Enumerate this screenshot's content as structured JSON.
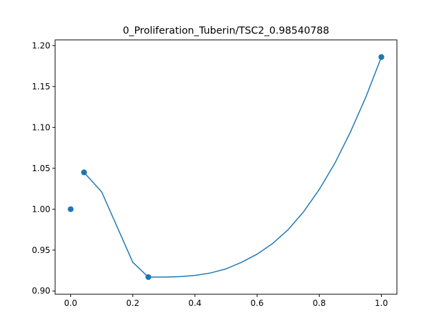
{
  "chart_data": {
    "type": "line",
    "title": "0_Proliferation_Tuberin/TSC2_0.98540788",
    "xlabel": "",
    "ylabel": "",
    "xlim": [
      -0.05,
      1.05
    ],
    "ylim": [
      0.896,
      1.207
    ],
    "grid": false,
    "color": "#1f77b4",
    "x_ticks": [
      {
        "value": 0.0,
        "label": "0.0"
      },
      {
        "value": 0.2,
        "label": "0.2"
      },
      {
        "value": 0.4,
        "label": "0.4"
      },
      {
        "value": 0.6,
        "label": "0.6"
      },
      {
        "value": 0.8,
        "label": "0.8"
      },
      {
        "value": 1.0,
        "label": "1.0"
      }
    ],
    "y_ticks": [
      {
        "value": 0.9,
        "label": "0.90"
      },
      {
        "value": 0.95,
        "label": "0.95"
      },
      {
        "value": 1.0,
        "label": "1.00"
      },
      {
        "value": 1.05,
        "label": "1.05"
      },
      {
        "value": 1.1,
        "label": "1.10"
      },
      {
        "value": 1.15,
        "label": "1.15"
      },
      {
        "value": 1.2,
        "label": "1.20"
      }
    ],
    "series": [
      {
        "kind": "line",
        "x": [
          0.043,
          0.1,
          0.15,
          0.2,
          0.25,
          0.3,
          0.35,
          0.4,
          0.45,
          0.5,
          0.55,
          0.6,
          0.65,
          0.7,
          0.75,
          0.8,
          0.85,
          0.9,
          0.95,
          1.0
        ],
        "y": [
          1.045,
          1.021,
          0.978,
          0.935,
          0.917,
          0.917,
          0.9175,
          0.919,
          0.922,
          0.927,
          0.935,
          0.945,
          0.958,
          0.975,
          0.997,
          1.024,
          1.056,
          1.094,
          1.137,
          1.186
        ]
      },
      {
        "kind": "scatter",
        "x": [
          0.0,
          0.043,
          0.25,
          1.0
        ],
        "y": [
          1.0,
          1.045,
          0.917,
          1.186
        ]
      }
    ]
  }
}
